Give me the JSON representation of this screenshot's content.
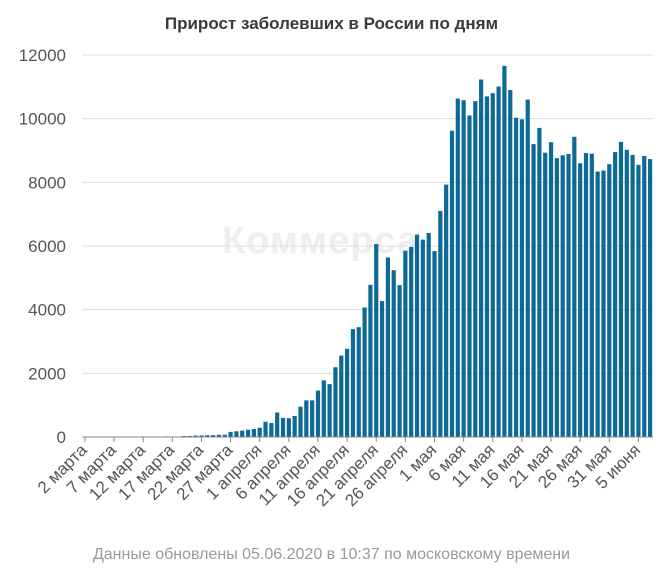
{
  "colors": {
    "bar": "#0d6a96",
    "grid": "#dcdcdc",
    "text": "#555555"
  },
  "title": "Прирост заболевших в России по дням",
  "footer": "Данные обновлены 05.06.2020 в 10:37 по московскому времени",
  "watermark": "Коммерса",
  "chart_data": {
    "type": "bar",
    "title": "Прирост заболевших в России по дням",
    "xlabel": "",
    "ylabel": "",
    "ylim": [
      0,
      12000
    ],
    "yticks": [
      0,
      2000,
      4000,
      6000,
      8000,
      10000,
      12000
    ],
    "grid": true,
    "legend": "none",
    "start_date": "2020-03-02",
    "x_tick_labels": [
      "2 марта",
      "7 марта",
      "12 марта",
      "17 марта",
      "22 марта",
      "27 марта",
      "1 апреля",
      "6 апреля",
      "11 апреля",
      "16 апреля",
      "21 апреля",
      "26 апреля",
      "1 мая",
      "6 мая",
      "11 мая",
      "16 мая",
      "21 мая",
      "26 мая",
      "31 мая",
      "5 июня"
    ],
    "values": [
      0,
      0,
      0,
      1,
      0,
      1,
      3,
      3,
      1,
      4,
      6,
      4,
      6,
      10,
      20,
      10,
      5,
      30,
      32,
      45,
      50,
      56,
      58,
      68,
      73,
      160,
      180,
      200,
      230,
      250,
      290,
      480,
      440,
      770,
      600,
      590,
      660,
      950,
      1150,
      1150,
      1460,
      1780,
      1660,
      2190,
      2560,
      2770,
      3390,
      3450,
      4070,
      4780,
      6060,
      4270,
      5640,
      5240,
      4770,
      5850,
      5970,
      6360,
      6200,
      6410,
      5840,
      7100,
      7930,
      9620,
      10630,
      10580,
      10100,
      10550,
      11230,
      10700,
      10800,
      11010,
      11660,
      10900,
      10030,
      9980,
      10600,
      9200,
      9710,
      8930,
      9260,
      8760,
      8850,
      8890,
      9430,
      8600,
      8920,
      8900,
      8340,
      8370,
      8570,
      8950,
      9270,
      9020,
      8860,
      8550,
      8830,
      8730
    ]
  }
}
